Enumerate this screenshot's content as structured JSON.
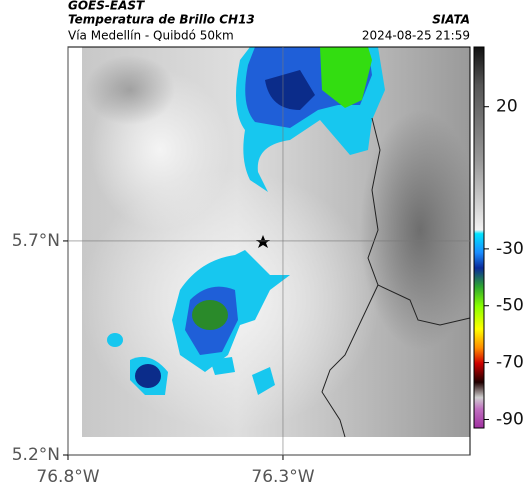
{
  "header": {
    "title": "GOES-EAST",
    "product": "Temperatura de Brillo CH13",
    "route": "Vía Medellín - Quibdó 50km",
    "source": "SIATA",
    "timestamp": "2024-08-25 21:59"
  },
  "map": {
    "xlim": [
      -76.8,
      -75.865
    ],
    "ylim": [
      5.2,
      6.153
    ],
    "xticks": [
      {
        "value": -76.8,
        "label": "76.8°W"
      },
      {
        "value": -76.3,
        "label": "76.3°W"
      }
    ],
    "yticks": [
      {
        "value": 5.2,
        "label": "5.2°N"
      },
      {
        "value": 5.7,
        "label": "5.7°N"
      }
    ]
  },
  "colorbar": {
    "lim": [
      41,
      -93
    ],
    "ticks": [
      20,
      -30,
      -50,
      -70,
      -90
    ]
  }
}
